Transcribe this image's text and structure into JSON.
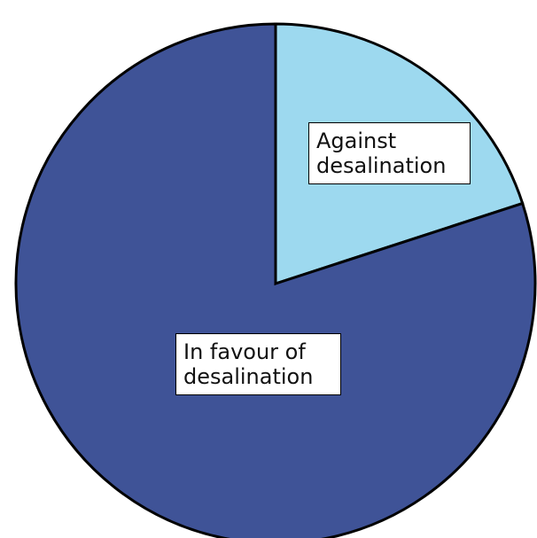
{
  "chart_data": {
    "type": "pie",
    "categories": [
      "Against desalination",
      "In favour of desalination"
    ],
    "values": [
      20,
      80
    ],
    "colors": [
      "#9dd9ef",
      "#3f5397"
    ]
  }
}
